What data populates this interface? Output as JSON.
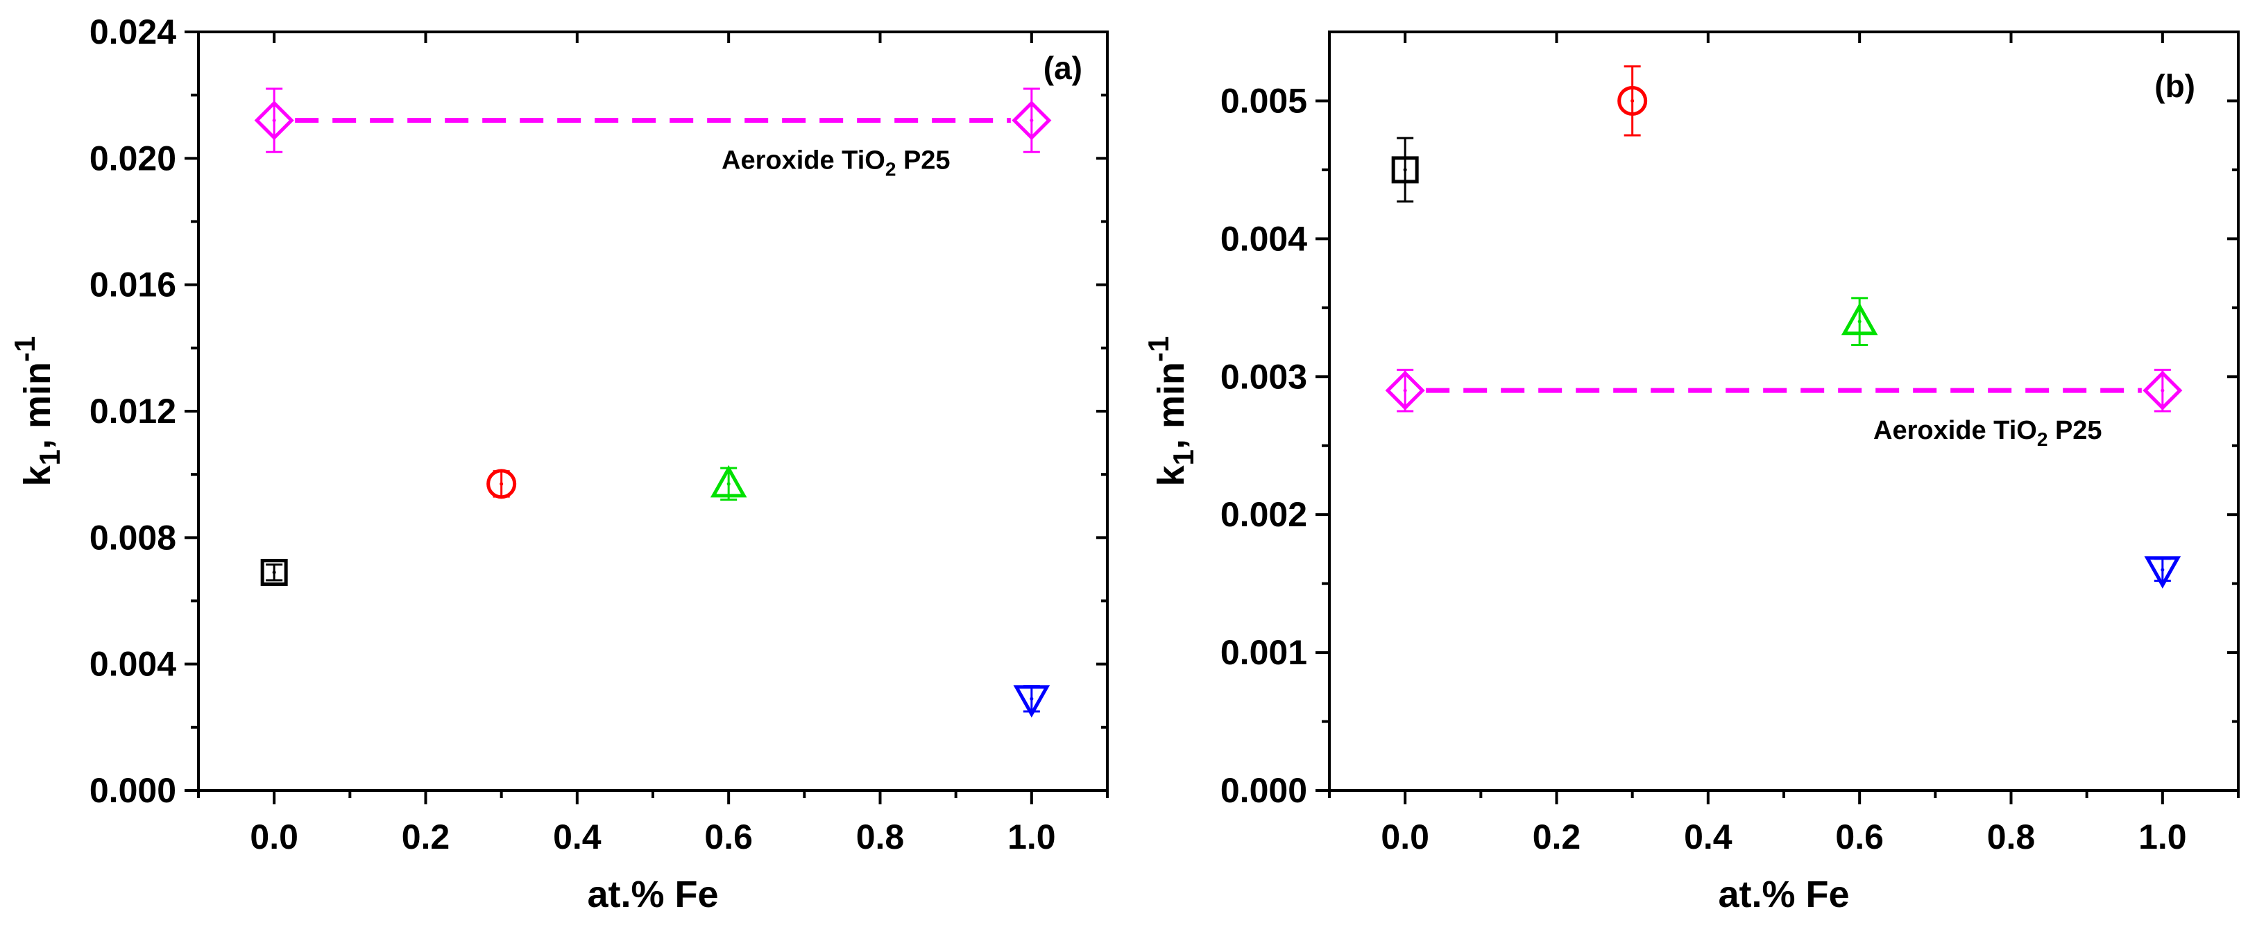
{
  "chart_data": [
    {
      "type": "scatter",
      "panel_label": "(a)",
      "xlabel": "at.% Fe",
      "ylabel": {
        "main": "k",
        "sub": "1",
        "unit": ", min",
        "sup": "-1"
      },
      "xlim": [
        -0.1,
        1.1
      ],
      "ylim": [
        0.0,
        0.024
      ],
      "xticks": [
        0.0,
        0.2,
        0.4,
        0.6,
        0.8,
        1.0
      ],
      "xtick_labels": [
        "0.0",
        "0.2",
        "0.4",
        "0.6",
        "0.8",
        "1.0"
      ],
      "yticks": [
        0.0,
        0.004,
        0.008,
        0.012,
        0.016,
        0.02,
        0.024
      ],
      "ytick_labels": [
        "0.000",
        "0.004",
        "0.008",
        "0.012",
        "0.016",
        "0.020",
        "0.024"
      ],
      "points": [
        {
          "x": 0.0,
          "y": 0.0069,
          "err": 0.00025,
          "marker": "square",
          "color": "#000000"
        },
        {
          "x": 0.3,
          "y": 0.0097,
          "err": 0.0004,
          "marker": "circle",
          "color": "#ff0000"
        },
        {
          "x": 0.6,
          "y": 0.0097,
          "err": 0.0005,
          "marker": "triangle-up",
          "color": "#00e000"
        },
        {
          "x": 1.0,
          "y": 0.0029,
          "err": 0.0004,
          "marker": "triangle-down",
          "color": "#0000ff"
        }
      ],
      "reference": {
        "label_main": "Aeroxide TiO",
        "label_sub": "2",
        "label_tail": " P25",
        "y": 0.0212,
        "err": 0.001,
        "x_points": [
          0.0,
          1.0
        ],
        "marker": "diamond",
        "color": "#ff00ff"
      }
    },
    {
      "type": "scatter",
      "panel_label": "(b)",
      "xlabel": "at.% Fe",
      "ylabel": {
        "main": "k",
        "sub": "1",
        "unit": ", min",
        "sup": "-1"
      },
      "xlim": [
        -0.1,
        1.1
      ],
      "ylim": [
        0.0,
        0.0055
      ],
      "xticks": [
        0.0,
        0.2,
        0.4,
        0.6,
        0.8,
        1.0
      ],
      "xtick_labels": [
        "0.0",
        "0.2",
        "0.4",
        "0.6",
        "0.8",
        "1.0"
      ],
      "yticks": [
        0.0,
        0.001,
        0.002,
        0.003,
        0.004,
        0.005
      ],
      "ytick_labels": [
        "0.000",
        "0.001",
        "0.002",
        "0.003",
        "0.004",
        "0.005"
      ],
      "points": [
        {
          "x": 0.0,
          "y": 0.0045,
          "err": 0.00023,
          "marker": "square",
          "color": "#000000"
        },
        {
          "x": 0.3,
          "y": 0.005,
          "err": 0.00025,
          "marker": "circle",
          "color": "#ff0000"
        },
        {
          "x": 0.6,
          "y": 0.0034,
          "err": 0.00017,
          "marker": "triangle-up",
          "color": "#00e000"
        },
        {
          "x": 1.0,
          "y": 0.0016,
          "err": 8e-05,
          "marker": "triangle-down",
          "color": "#0000ff"
        }
      ],
      "reference": {
        "label_main": "Aeroxide TiO",
        "label_sub": "2",
        "label_tail": " P25",
        "y": 0.0029,
        "err": 0.00015,
        "x_points": [
          0.0,
          1.0
        ],
        "marker": "diamond",
        "color": "#ff00ff"
      }
    }
  ]
}
